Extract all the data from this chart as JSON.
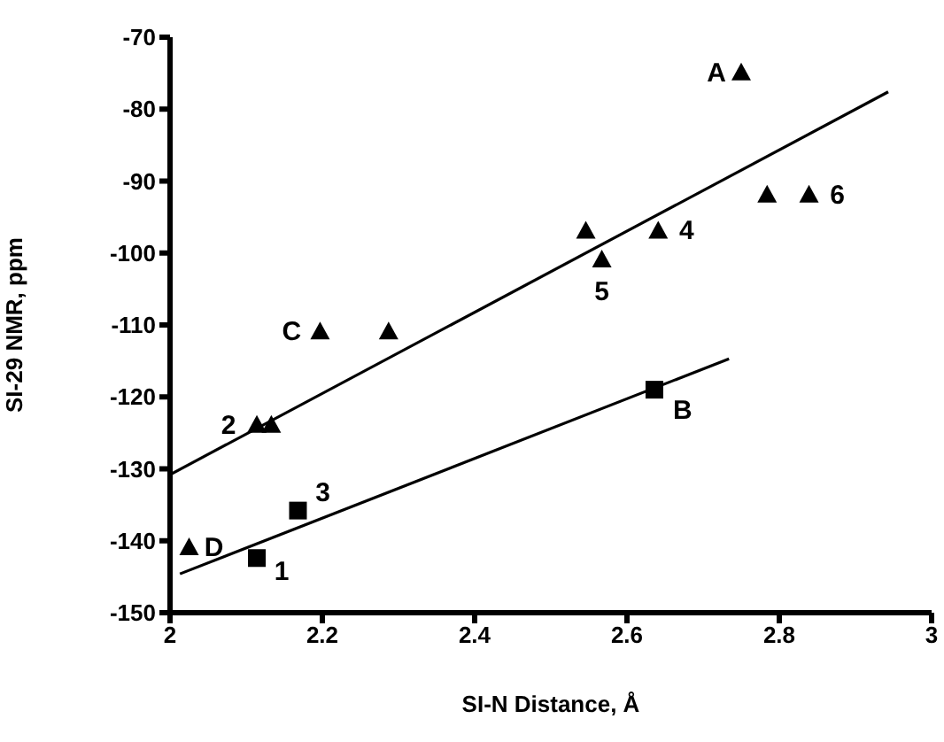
{
  "chart_data": {
    "type": "scatter",
    "xlabel": "SI-N Distance, Å",
    "ylabel": "SI-29 NMR, ppm",
    "xlim": [
      2,
      3
    ],
    "xticks": [
      2,
      2.2,
      2.4,
      2.6,
      2.8,
      3
    ],
    "ylim": [
      -150,
      -70
    ],
    "yticks": [
      -150,
      -140,
      -130,
      -120,
      -110,
      -100,
      -90,
      -80,
      -70
    ],
    "grid": false,
    "legend": false,
    "series": [
      {
        "type": "scatter",
        "marker": "triangle",
        "color": "#000000",
        "x": [
          2.75,
          2.784,
          2.839,
          2.641,
          2.546,
          2.567,
          2.197,
          2.287,
          2.114,
          2.133,
          2.025
        ],
        "values": [
          -75,
          -92,
          -92,
          -97,
          -97,
          -101,
          -111,
          -111,
          -124,
          -124,
          -141
        ]
      },
      {
        "type": "scatter",
        "marker": "square",
        "color": "#000000",
        "x": [
          2.114,
          2.168,
          2.636
        ],
        "values": [
          -142.4,
          -135.8,
          -119
        ]
      },
      {
        "type": "line",
        "marker": "none",
        "line_style": "solid",
        "color": "#000000",
        "x": [
          2,
          2.943
        ],
        "values": [
          -130.8,
          -77.6
        ]
      },
      {
        "type": "line",
        "marker": "none",
        "line_style": "solid",
        "color": "#000000",
        "x": [
          2.013,
          2.734
        ],
        "values": [
          -144.6,
          -114.7
        ]
      }
    ],
    "annotations": [
      {
        "text": "A",
        "x": 2.75,
        "y": -75
      },
      {
        "text": "B",
        "x": 2.636,
        "y": -119
      },
      {
        "text": "C",
        "x": 2.197,
        "y": -111
      },
      {
        "text": "D",
        "x": 2.025,
        "y": -141
      },
      {
        "text": "1",
        "x": 2.114,
        "y": -142.4
      },
      {
        "text": "2",
        "x": 2.114,
        "y": -124
      },
      {
        "text": "3",
        "x": 2.168,
        "y": -135.8
      },
      {
        "text": "4",
        "x": 2.641,
        "y": -97
      },
      {
        "text": "5",
        "x": 2.567,
        "y": -101
      },
      {
        "text": "6",
        "x": 2.839,
        "y": -92
      }
    ]
  }
}
